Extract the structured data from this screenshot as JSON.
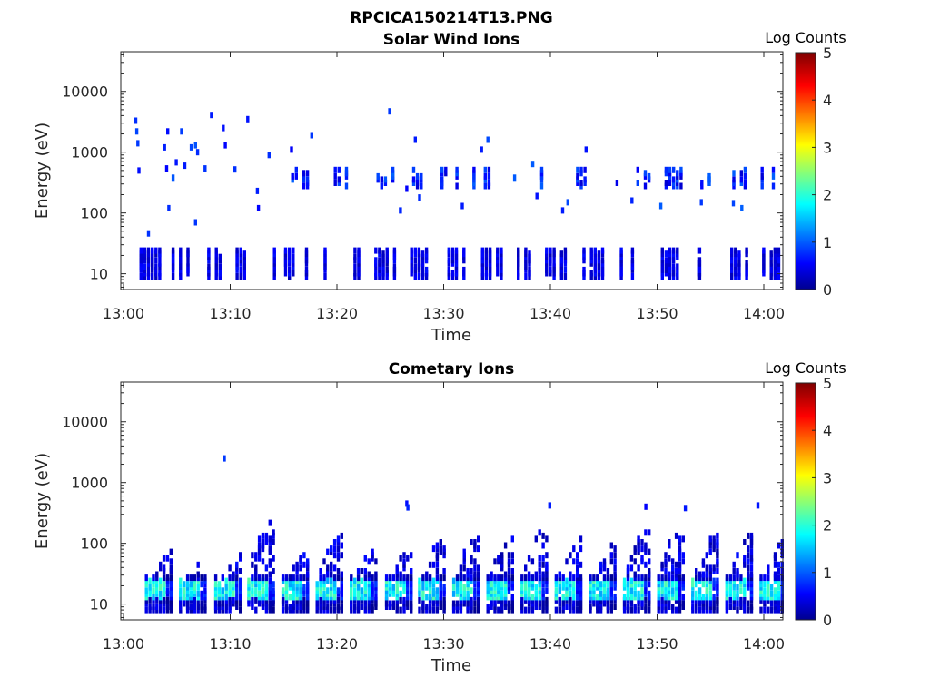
{
  "figure": {
    "title": "RPCICA150214T13.PNG"
  },
  "colormap": "jet",
  "chart_data": [
    {
      "type": "heatmap",
      "title": "Solar Wind Ions",
      "xlabel": "Time",
      "ylabel": "Energy (eV)",
      "x_ticks": [
        "13:00",
        "13:10",
        "13:20",
        "13:30",
        "13:40",
        "13:50",
        "14:00"
      ],
      "x_range_minutes": [
        0,
        62
      ],
      "y_scale": "log",
      "y_ticks": [
        "10",
        "100",
        "1000",
        "10000"
      ],
      "y_range": [
        5.5,
        45000
      ],
      "colorbar": {
        "label": "Log Counts",
        "min": 0,
        "max": 5,
        "ticks": [
          "0",
          "1",
          "2",
          "3",
          "4",
          "5"
        ]
      },
      "low_energy_bursts_minutes": [
        2.5,
        5.5,
        8.5,
        11.5,
        15,
        18,
        21.5,
        24.5,
        27.5,
        31,
        34.5,
        37.5,
        40.5,
        44,
        47.5,
        51,
        54.5,
        57.5,
        60.5
      ],
      "low_energy_range_ev": [
        9,
        26
      ],
      "mid_energy_bursts_minutes": [
        16.5,
        20.5,
        24.5,
        27.5,
        30.5,
        33.5,
        39.5,
        42.5,
        45.5,
        48.5,
        51.5,
        54.5,
        57.5,
        60.5
      ],
      "mid_energy_range_ev": [
        270,
        560
      ],
      "scattered_points": [
        [
          1.0,
          3300
        ],
        [
          1.1,
          2200
        ],
        [
          1.2,
          1400
        ],
        [
          1.3,
          500
        ],
        [
          2.2,
          46
        ],
        [
          3.7,
          1200
        ],
        [
          3.9,
          540
        ],
        [
          4.0,
          2200
        ],
        [
          4.1,
          120
        ],
        [
          4.5,
          380
        ],
        [
          4.8,
          680
        ],
        [
          5.3,
          2200
        ],
        [
          5.6,
          600
        ],
        [
          6.2,
          1200
        ],
        [
          6.6,
          1300
        ],
        [
          6.8,
          1000
        ],
        [
          6.6,
          70
        ],
        [
          7.5,
          540
        ],
        [
          8.1,
          4100
        ],
        [
          9.2,
          2500
        ],
        [
          9.4,
          1300
        ],
        [
          10.3,
          520
        ],
        [
          11.5,
          3500
        ],
        [
          12.4,
          230
        ],
        [
          12.5,
          120
        ],
        [
          13.5,
          900
        ],
        [
          15.6,
          1100
        ],
        [
          17.5,
          1900
        ],
        [
          24.8,
          4700
        ],
        [
          25.8,
          110
        ],
        [
          26.4,
          250
        ],
        [
          27.2,
          1600
        ],
        [
          27.6,
          180
        ],
        [
          31.6,
          130
        ],
        [
          33.4,
          1100
        ],
        [
          34.0,
          1600
        ],
        [
          36.5,
          380
        ],
        [
          38.2,
          640
        ],
        [
          38.6,
          190
        ],
        [
          41.0,
          110
        ],
        [
          41.5,
          150
        ],
        [
          43.2,
          1100
        ],
        [
          47.5,
          160
        ],
        [
          50.2,
          130
        ],
        [
          54.0,
          150
        ],
        [
          57.0,
          145
        ],
        [
          57.8,
          120
        ]
      ]
    },
    {
      "type": "heatmap",
      "title": "Cometary Ions",
      "xlabel": "Time",
      "ylabel": "Energy (eV)",
      "x_ticks": [
        "13:00",
        "13:10",
        "13:20",
        "13:30",
        "13:40",
        "13:50",
        "14:00"
      ],
      "x_range_minutes": [
        0,
        62
      ],
      "y_scale": "log",
      "y_ticks": [
        "10",
        "100",
        "1000",
        "10000"
      ],
      "y_range": [
        5.5,
        45000
      ],
      "colorbar": {
        "label": "Log Counts",
        "min": 0,
        "max": 5,
        "ticks": [
          "0",
          "1",
          "2",
          "3",
          "4",
          "5"
        ]
      },
      "burst_starts_minutes": [
        2.0,
        5.2,
        8.5,
        11.6,
        14.8,
        18.0,
        21.2,
        24.5,
        27.6,
        30.8,
        34.0,
        37.2,
        40.4,
        43.6,
        46.8,
        50.0,
        53.2,
        56.4,
        59.6
      ],
      "burst_peak_ev": [
        75,
        60,
        65,
        250,
        80,
        140,
        90,
        85,
        140,
        140,
        130,
        200,
        130,
        110,
        180,
        190,
        160,
        150,
        120
      ],
      "scattered_points": [
        [
          9.3,
          2500
        ],
        [
          26.4,
          450
        ],
        [
          26.5,
          390
        ],
        [
          39.8,
          420
        ],
        [
          48.8,
          400
        ],
        [
          52.5,
          380
        ],
        [
          59.3,
          420
        ]
      ]
    }
  ]
}
